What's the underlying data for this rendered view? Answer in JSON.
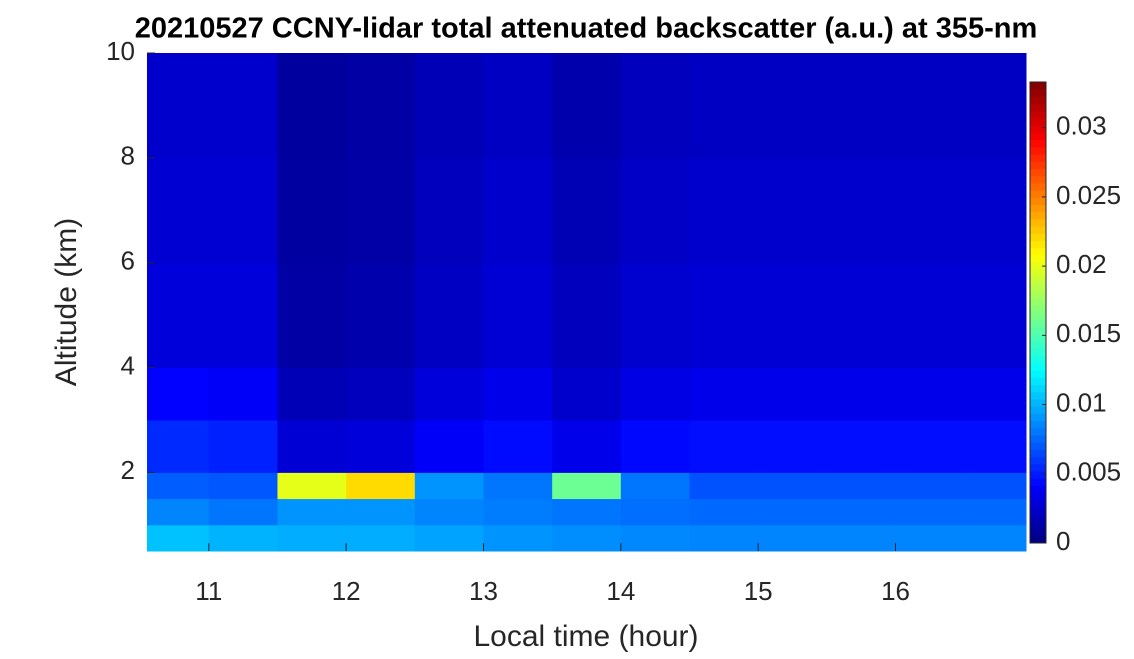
{
  "chart_data": {
    "type": "heatmap",
    "title": "20210527 CCNY-lidar total attenuated backscatter (a.u.) at 355-nm",
    "x_label": "Local time (hour)",
    "y_label": "Altitude (km)",
    "xlim": [
      10.55,
      16.95
    ],
    "ylim": [
      0.5,
      10
    ],
    "xticks": [
      11,
      12,
      13,
      14,
      15,
      16
    ],
    "yticks": [
      2,
      4,
      6,
      8,
      10
    ],
    "colormap": "jet",
    "clim": [
      0,
      0.0333
    ],
    "cticks": [
      0,
      0.005,
      0.01,
      0.015,
      0.02,
      0.025,
      0.03
    ],
    "x_bins": [
      10.55,
      11,
      11.5,
      12,
      12.5,
      13,
      13.5,
      14,
      14.5,
      15,
      15.5,
      16,
      16.5,
      16.95
    ],
    "y_bins": [
      0.5,
      1,
      1.5,
      2,
      3,
      4,
      6,
      8,
      10
    ],
    "values": [
      [
        0.0105,
        0.01,
        0.0098,
        0.0098,
        0.0095,
        0.009,
        0.0088,
        0.0086,
        0.0085,
        0.0085,
        0.0085,
        0.0085,
        0.0085
      ],
      [
        0.0085,
        0.008,
        0.009,
        0.009,
        0.0085,
        0.0082,
        0.008,
        0.0078,
        0.0076,
        0.0076,
        0.0076,
        0.0076,
        0.0076
      ],
      [
        0.0072,
        0.007,
        0.02,
        0.022,
        0.009,
        0.008,
        0.016,
        0.008,
        0.0068,
        0.0068,
        0.0068,
        0.0068,
        0.0068
      ],
      [
        0.0055,
        0.0052,
        0.0028,
        0.003,
        0.004,
        0.0045,
        0.0035,
        0.0044,
        0.0046,
        0.0046,
        0.0046,
        0.0046,
        0.0046
      ],
      [
        0.0042,
        0.004,
        0.0018,
        0.002,
        0.003,
        0.0035,
        0.0025,
        0.0033,
        0.0035,
        0.0035,
        0.0035,
        0.0035,
        0.0035
      ],
      [
        0.003,
        0.003,
        0.0012,
        0.0015,
        0.0022,
        0.0028,
        0.002,
        0.0026,
        0.0028,
        0.0028,
        0.0028,
        0.0028,
        0.0028
      ],
      [
        0.0027,
        0.0027,
        0.0011,
        0.0013,
        0.002,
        0.0025,
        0.0017,
        0.0023,
        0.0025,
        0.0025,
        0.0025,
        0.0025,
        0.0025
      ],
      [
        0.0025,
        0.0025,
        0.001,
        0.0012,
        0.0018,
        0.0022,
        0.0015,
        0.002,
        0.0022,
        0.0022,
        0.0022,
        0.0022,
        0.0022
      ]
    ]
  }
}
